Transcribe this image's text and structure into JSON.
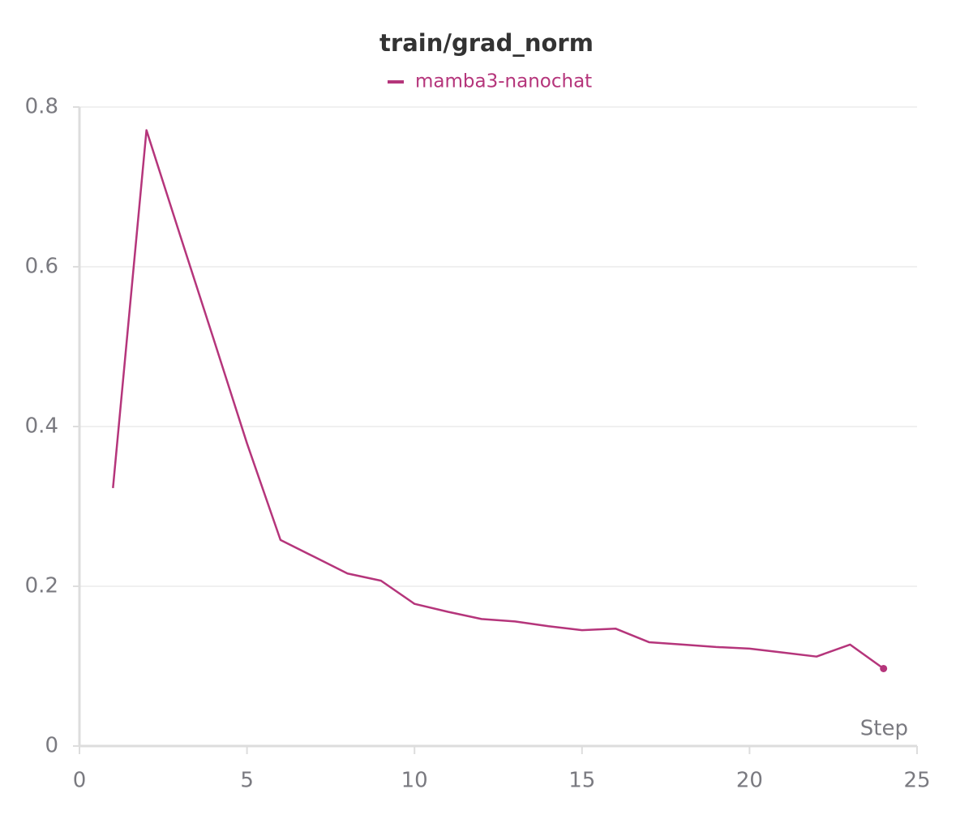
{
  "chart_data": {
    "type": "line",
    "title": "train/grad_norm",
    "x_label": "Step",
    "x": [
      1,
      2,
      3,
      4,
      5,
      6,
      7,
      8,
      9,
      10,
      11,
      12,
      13,
      14,
      15,
      16,
      17,
      18,
      19,
      20,
      21,
      22,
      23,
      24
    ],
    "series": [
      {
        "name": "mamba3-nanochat",
        "color": "#b5357b",
        "values": [
          0.323,
          0.771,
          0.64,
          0.51,
          0.379,
          0.258,
          0.237,
          0.216,
          0.207,
          0.178,
          0.168,
          0.159,
          0.156,
          0.15,
          0.145,
          0.147,
          0.13,
          0.127,
          0.124,
          0.122,
          0.117,
          0.112,
          0.127,
          0.097
        ]
      }
    ],
    "xlim": [
      0,
      25
    ],
    "xticks": [
      0,
      5,
      10,
      15,
      20,
      25
    ],
    "ylim": [
      0,
      0.8
    ],
    "yticks": [
      0,
      0.2,
      0.4,
      0.6,
      0.8
    ],
    "grid": true
  }
}
